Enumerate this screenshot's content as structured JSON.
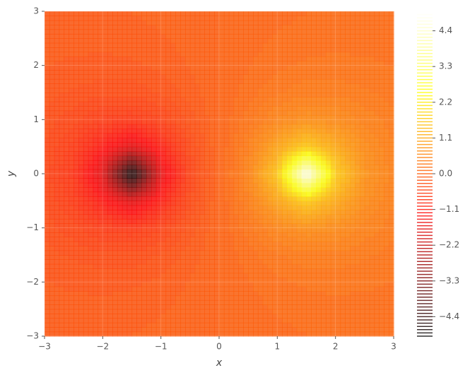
{
  "chart_data": {
    "type": "contour",
    "x_label": "x",
    "y_label": "y",
    "x": [
      -3,
      -2.5,
      -2,
      -1.5,
      -1,
      -0.5,
      0,
      0.5,
      1,
      1.5,
      2,
      2.5,
      3
    ],
    "y": [
      -3,
      -2.5,
      -2,
      -1.5,
      -1,
      -0.5,
      0,
      0.5,
      1,
      1.5,
      2,
      2.5,
      3
    ],
    "z": [
      [
        -0.113,
        -0.116,
        -0.112,
        -0.097,
        -0.073,
        -0.039,
        0,
        0.039,
        0.073,
        0.097,
        0.112,
        0.116,
        0.113
      ],
      [
        -0.149,
        -0.159,
        -0.16,
        -0.144,
        -0.109,
        -0.059,
        0,
        0.059,
        0.109,
        0.144,
        0.16,
        0.159,
        0.149
      ],
      [
        -0.197,
        -0.223,
        -0.237,
        -0.223,
        -0.173,
        -0.093,
        0,
        0.093,
        0.173,
        0.223,
        0.237,
        0.223,
        0.197
      ],
      [
        -0.26,
        -0.321,
        -0.369,
        -0.369,
        -0.289,
        -0.155,
        0,
        0.155,
        0.289,
        0.369,
        0.369,
        0.321,
        0.26
      ],
      [
        -0.338,
        -0.464,
        -0.619,
        -0.684,
        -0.523,
        -0.26,
        0,
        0.26,
        0.523,
        0.684,
        0.619,
        0.464,
        0.338
      ],
      [
        -0.411,
        -0.646,
        -1.131,
        -1.671,
        -1.022,
        -0.409,
        0,
        0.409,
        1.022,
        1.671,
        1.131,
        0.646,
        0.411
      ],
      [
        -0.444,
        -0.75,
        -1.714,
        -5,
        -1.6,
        -0.5,
        0,
        0.5,
        1.6,
        5,
        1.714,
        0.75,
        0.444
      ],
      [
        -0.411,
        -0.646,
        -1.131,
        -1.671,
        -1.022,
        -0.409,
        0,
        0.409,
        1.022,
        1.671,
        1.131,
        0.646,
        0.411
      ],
      [
        -0.338,
        -0.464,
        -0.619,
        -0.684,
        -0.523,
        -0.26,
        0,
        0.26,
        0.523,
        0.684,
        0.619,
        0.464,
        0.338
      ],
      [
        -0.26,
        -0.321,
        -0.369,
        -0.369,
        -0.289,
        -0.155,
        0,
        0.155,
        0.289,
        0.369,
        0.369,
        0.321,
        0.26
      ],
      [
        -0.197,
        -0.223,
        -0.237,
        -0.223,
        -0.173,
        -0.093,
        0,
        0.093,
        0.173,
        0.223,
        0.237,
        0.223,
        0.197
      ],
      [
        -0.149,
        -0.159,
        -0.16,
        -0.144,
        -0.109,
        -0.059,
        0,
        0.059,
        0.109,
        0.144,
        0.16,
        0.159,
        0.149
      ],
      [
        -0.113,
        -0.116,
        -0.112,
        -0.097,
        -0.073,
        -0.039,
        0,
        0.039,
        0.073,
        0.097,
        0.112,
        0.116,
        0.113
      ]
    ],
    "xlim": [
      -3,
      3
    ],
    "ylim": [
      -3,
      3
    ],
    "xticks": [
      {
        "value": -3,
        "label": "−3"
      },
      {
        "value": -2,
        "label": "−2"
      },
      {
        "value": -1,
        "label": "−1"
      },
      0,
      1,
      2,
      3
    ],
    "yticks": [
      {
        "value": -3,
        "label": "−3"
      },
      {
        "value": -2,
        "label": "−2"
      },
      {
        "value": -1,
        "label": "−1"
      },
      0,
      1,
      2,
      3
    ],
    "clim": [
      -5,
      5
    ],
    "cticks": [
      {
        "value": -4.4,
        "label": "−4.4"
      },
      {
        "value": -3.3,
        "label": "−3.3"
      },
      {
        "value": -2.2,
        "label": "−2.2"
      },
      {
        "value": -1.1,
        "label": "−1.1"
      },
      {
        "value": 0,
        "label": "0.0"
      },
      1.1,
      2.2,
      3.3,
      4.4
    ],
    "level_step": 0.1,
    "colormap": "hot",
    "grid": true
  }
}
